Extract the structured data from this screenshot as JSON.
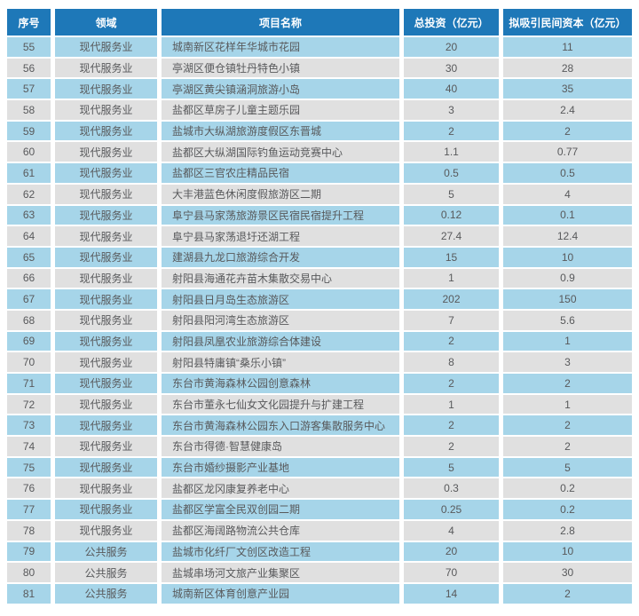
{
  "colors": {
    "header_bg": "#1E78B8",
    "header_text": "#FFFFFF",
    "row_blue": "#A6D5E9",
    "row_gray": "#E0E0E0",
    "cell_text": "#58595B",
    "page_background": "#FFFFFF"
  },
  "table": {
    "columns": [
      {
        "key": "no",
        "label": "序号"
      },
      {
        "key": "field",
        "label": "领域"
      },
      {
        "key": "name",
        "label": "项目名称"
      },
      {
        "key": "investment",
        "label": "总投资（亿元）"
      },
      {
        "key": "private_capital",
        "label": "拟吸引民间资本（亿元）"
      }
    ],
    "rows": [
      [
        "55",
        "现代服务业",
        "城南新区花样年华城市花园",
        "20",
        "11"
      ],
      [
        "56",
        "现代服务业",
        "亭湖区便仓镇牡丹特色小镇",
        "30",
        "28"
      ],
      [
        "57",
        "现代服务业",
        "亭湖区黄尖镇涵洞旅游小岛",
        "40",
        "35"
      ],
      [
        "58",
        "现代服务业",
        "盐都区草房子儿童主题乐园",
        "3",
        "2.4"
      ],
      [
        "59",
        "现代服务业",
        "盐城市大纵湖旅游度假区东晋城",
        "2",
        "2"
      ],
      [
        "60",
        "现代服务业",
        "盐都区大纵湖国际钓鱼运动竞赛中心",
        "1.1",
        "0.77"
      ],
      [
        "61",
        "现代服务业",
        "盐都区三官农庄精品民宿",
        "0.5",
        "0.5"
      ],
      [
        "62",
        "现代服务业",
        "大丰港蓝色休闲度假旅游区二期",
        "5",
        "4"
      ],
      [
        "63",
        "现代服务业",
        "阜宁县马家荡旅游景区民宿民宿提升工程",
        "0.12",
        "0.1"
      ],
      [
        "64",
        "现代服务业",
        "阜宁县马家荡退圩还湖工程",
        "27.4",
        "12.4"
      ],
      [
        "65",
        "现代服务业",
        "建湖县九龙口旅游综合开发",
        "15",
        "10"
      ],
      [
        "66",
        "现代服务业",
        "射阳县海通花卉苗木集散交易中心",
        "1",
        "0.9"
      ],
      [
        "67",
        "现代服务业",
        "射阳县日月岛生态旅游区",
        "202",
        "150"
      ],
      [
        "68",
        "现代服务业",
        "射阳县阳河湾生态旅游区",
        "7",
        "5.6"
      ],
      [
        "69",
        "现代服务业",
        "射阳县凤凰农业旅游综合体建设",
        "2",
        "1"
      ],
      [
        "70",
        "现代服务业",
        "射阳县特庸镇“桑乐小镇”",
        "8",
        "3"
      ],
      [
        "71",
        "现代服务业",
        "东台市黄海森林公园创意森林",
        "2",
        "2"
      ],
      [
        "72",
        "现代服务业",
        "东台市董永七仙女文化园提升与扩建工程",
        "1",
        "1"
      ],
      [
        "73",
        "现代服务业",
        "东台市黄海森林公园东入口游客集散服务中心",
        "2",
        "2"
      ],
      [
        "74",
        "现代服务业",
        "东台市得德·智慧健康岛",
        "2",
        "2"
      ],
      [
        "75",
        "现代服务业",
        "东台市婚纱摄影产业基地",
        "5",
        "5"
      ],
      [
        "76",
        "现代服务业",
        "盐都区龙冈康复养老中心",
        "0.3",
        "0.2"
      ],
      [
        "77",
        "现代服务业",
        "盐都区学富全民双创园二期",
        "0.25",
        "0.2"
      ],
      [
        "78",
        "现代服务业",
        "盐都区海阔路物流公共仓库",
        "4",
        "2.8"
      ],
      [
        "79",
        "公共服务",
        "盐城市化纤厂文创区改造工程",
        "20",
        "10"
      ],
      [
        "80",
        "公共服务",
        "盐城串场河文旅产业集聚区",
        "70",
        "30"
      ],
      [
        "81",
        "公共服务",
        "城南新区体育创意产业园",
        "14",
        "2"
      ]
    ]
  }
}
